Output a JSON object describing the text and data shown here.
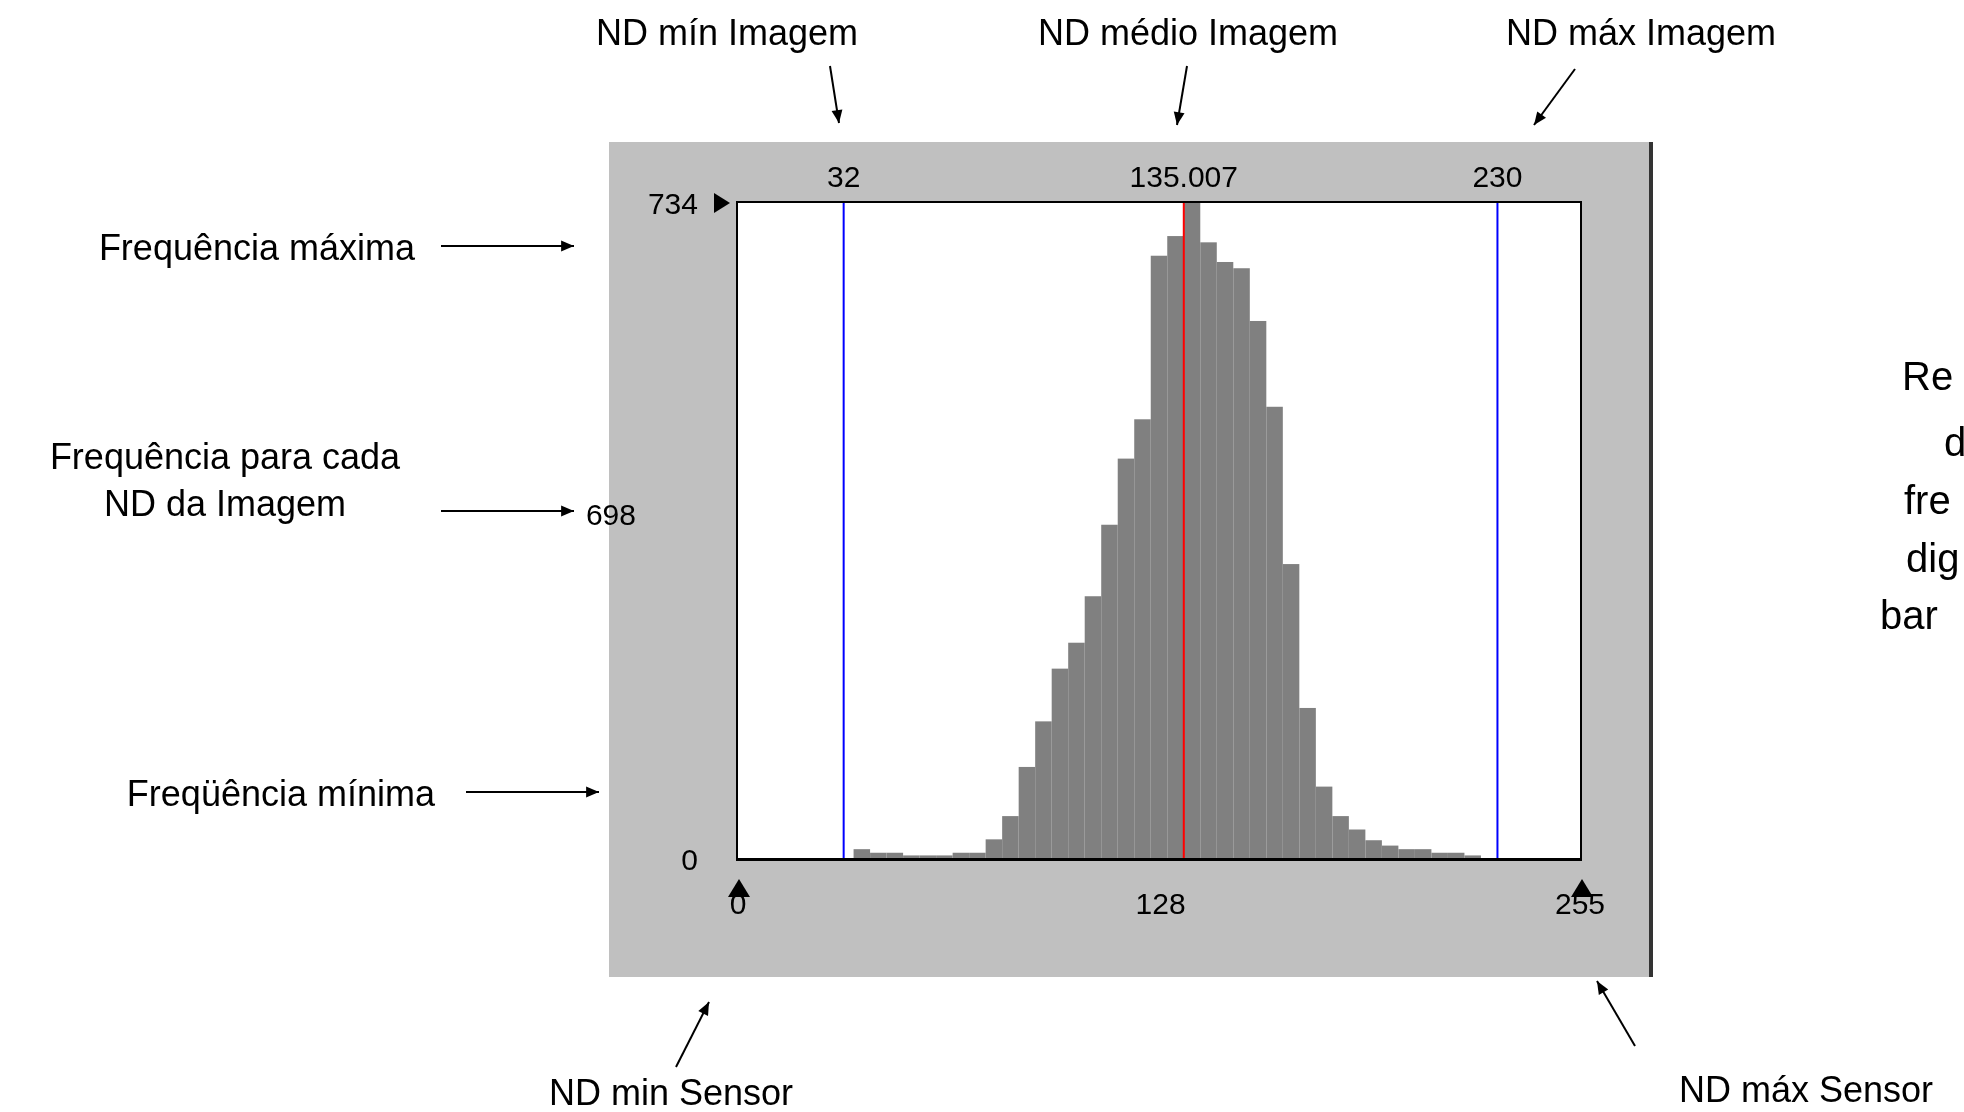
{
  "chart_data": {
    "type": "histogram",
    "color": "#808080",
    "ylim": [
      0,
      734
    ],
    "yticks": [
      0,
      734
    ],
    "bins": [
      0,
      5,
      10,
      15,
      20,
      25,
      30,
      35,
      40,
      45,
      50,
      55,
      60,
      65,
      70,
      75,
      80,
      85,
      90,
      95,
      100,
      105,
      110,
      115,
      120,
      125,
      130,
      135,
      140,
      145,
      150,
      155,
      160,
      165,
      170,
      175,
      180,
      185,
      190,
      195,
      200,
      205,
      210,
      215,
      220,
      225,
      230,
      235,
      240,
      245,
      250,
      255
    ],
    "values": [
      0,
      0,
      0,
      0,
      0,
      0,
      0,
      11,
      7,
      7,
      4,
      4,
      4,
      7,
      7,
      22,
      48,
      103,
      154,
      213,
      242,
      294,
      374,
      448,
      492,
      675,
      697,
      734,
      690,
      668,
      661,
      602,
      506,
      330,
      169,
      81,
      48,
      33,
      21,
      15,
      11,
      11,
      7,
      7,
      4,
      0,
      0,
      0,
      0,
      0,
      0
    ],
    "xlim": [
      0,
      255
    ],
    "xticks": [
      {
        "value": 0,
        "label": "0"
      },
      {
        "value": 128,
        "label": "128"
      },
      {
        "value": 255,
        "label": "255"
      }
    ],
    "ref_lines": [
      {
        "axis": "x",
        "value": 32,
        "label": "32",
        "color": "#0000ff"
      },
      {
        "axis": "x",
        "value": 135.007,
        "label": "135.007",
        "color": "#ff0000"
      },
      {
        "axis": "x",
        "value": 230,
        "label": "230",
        "color": "#0000ff"
      }
    ],
    "annotations": [
      "ND mín Imagem",
      "ND médio Imagem",
      "ND máx Imagem",
      "Frequência máxima",
      "Frequência para cada ND da Imagem",
      "Freqüência mínima",
      "ND min Sensor",
      "ND máx Sensor",
      "698",
      "Re",
      "d",
      "fre",
      "dig",
      "bar"
    ]
  }
}
